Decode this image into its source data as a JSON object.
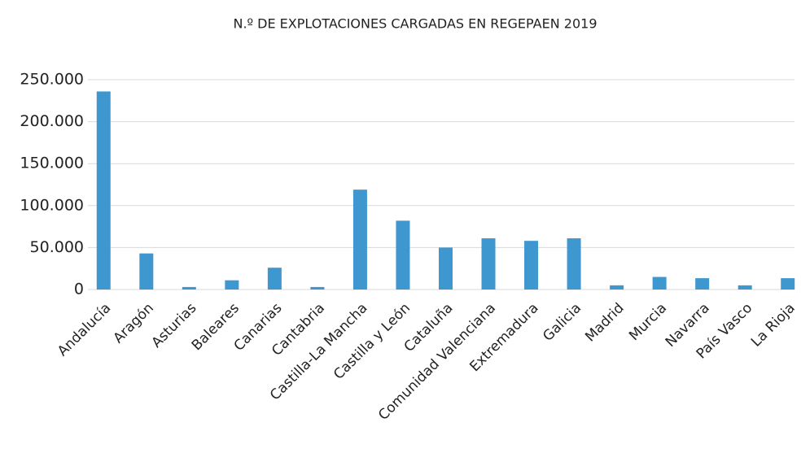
{
  "chart_data": {
    "type": "bar",
    "title": "N.º DE EXPLOTACIONES CARGADAS EN REGEPAEN 2019",
    "categories": [
      "Andalucía",
      "Aragón",
      "Asturias",
      "Baleares",
      "Canarias",
      "Cantabria",
      "Castilla-La Mancha",
      "Castilla y León",
      "Cataluña",
      "Comunidad Valenciana",
      "Extremadura",
      "Galicia",
      "Madrid",
      "Murcia",
      "Navarra",
      "País Vasco",
      "La Rioja"
    ],
    "values": [
      236000,
      43000,
      3000,
      11000,
      26000,
      3000,
      119000,
      82000,
      50000,
      61000,
      58000,
      61000,
      5000,
      15000,
      13500,
      5000,
      13500
    ],
    "color": "#3f97d0",
    "ylim": [
      0,
      250000
    ],
    "yticks": [
      0,
      {
        "value": 50000,
        "label": "50.000"
      },
      {
        "value": 100000,
        "label": "100.000"
      },
      {
        "value": 150000,
        "label": "150.000"
      },
      {
        "value": 200000,
        "label": "200.000"
      },
      {
        "value": 250000,
        "label": "250.000"
      }
    ],
    "grid": true
  }
}
